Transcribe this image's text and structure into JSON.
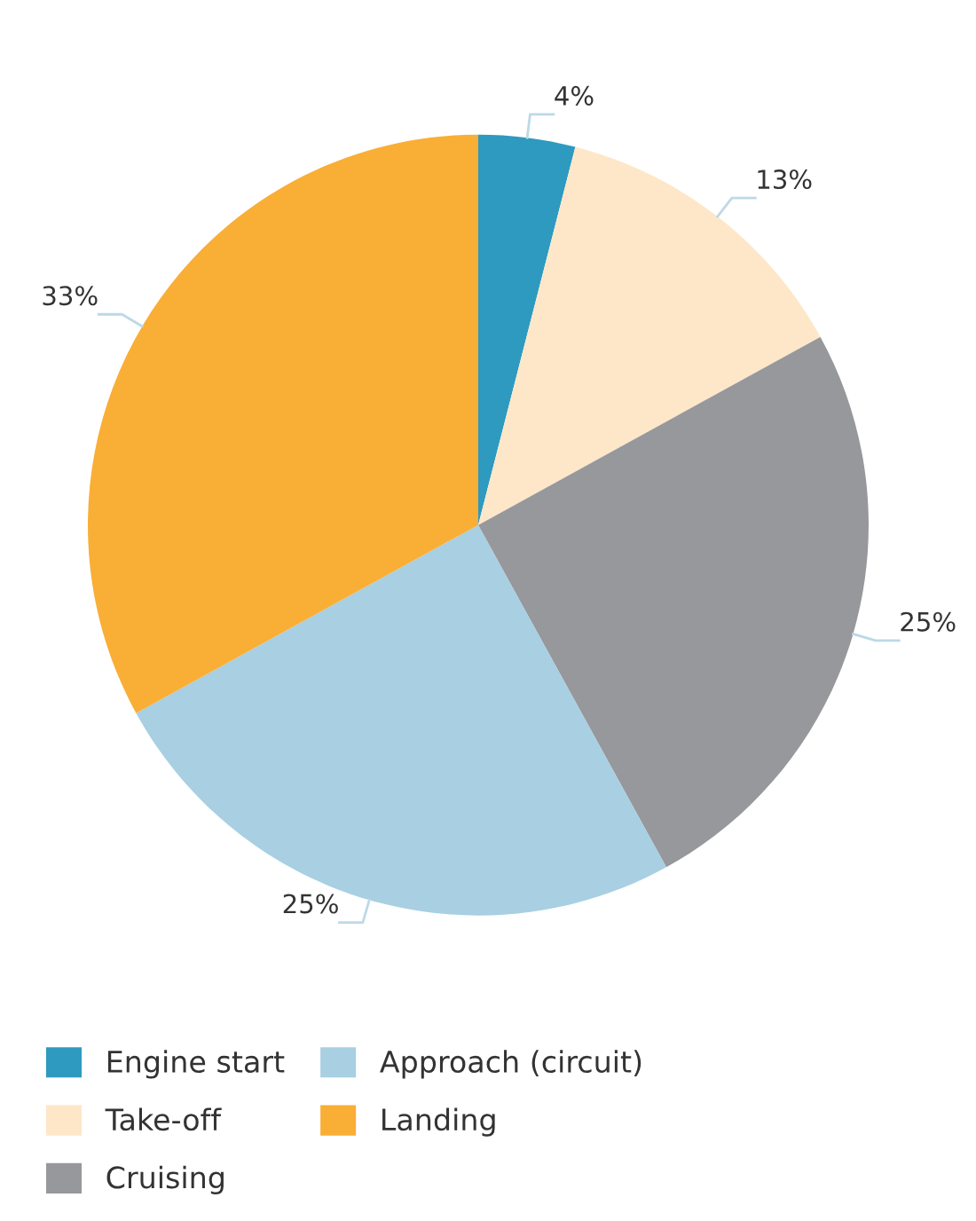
{
  "chart_data": {
    "type": "pie",
    "categories": [
      "Engine start",
      "Take-off",
      "Cruising",
      "Approach (circuit)",
      "Landing"
    ],
    "values": [
      4,
      13,
      25,
      25,
      33
    ],
    "colors": [
      "#2e9abf",
      "#fde7c8",
      "#97989c",
      "#a8cfe2",
      "#f9ae35"
    ],
    "value_labels": [
      "4%",
      "13%",
      "25%",
      "25%",
      "33%"
    ],
    "legend": "bottom left"
  }
}
